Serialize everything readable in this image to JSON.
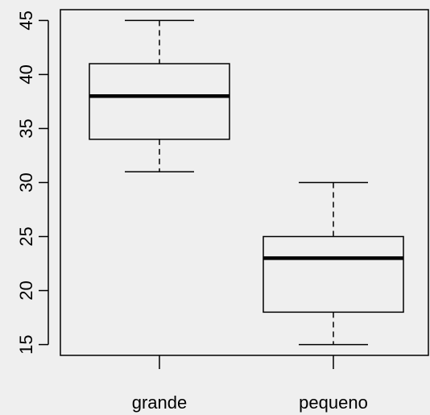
{
  "chart_data": {
    "type": "boxplot",
    "title": "",
    "xlabel": "",
    "ylabel": "",
    "ylim": [
      14,
      46
    ],
    "y_ticks": [
      15,
      20,
      25,
      30,
      35,
      40,
      45
    ],
    "grid": false,
    "background": "#efefef",
    "categories": [
      "grande",
      "pequeno"
    ],
    "boxes": [
      {
        "category": "grande",
        "whisker_low": 31,
        "q1": 34,
        "median": 38,
        "q3": 41,
        "whisker_high": 45
      },
      {
        "category": "pequeno",
        "whisker_low": 15,
        "q1": 18,
        "median": 23,
        "q3": 25,
        "whisker_high": 30
      }
    ]
  }
}
